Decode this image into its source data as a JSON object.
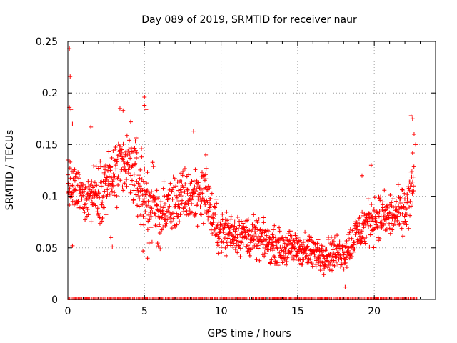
{
  "chart_data": {
    "type": "scatter",
    "title": "Day 089 of 2019, SRMTID for receiver naur",
    "xlabel": "GPS time / hours",
    "ylabel": "SRMTID / TECUs",
    "xlim": [
      0,
      24
    ],
    "ylim": [
      0,
      0.25
    ],
    "x_ticks": [
      0,
      5,
      10,
      15,
      20
    ],
    "x_tick_labels": [
      "0",
      "5",
      "10",
      "15",
      "20"
    ],
    "y_ticks": [
      0,
      0.05,
      0.1,
      0.15,
      0.2,
      0.25
    ],
    "y_tick_labels": [
      "0",
      "0.05",
      "0.1",
      "0.15",
      "0.2",
      "0.25"
    ],
    "grid": true,
    "marker": "+",
    "color": "#ff0000",
    "trend": [
      {
        "x": 0.0,
        "y": 0.11,
        "spread": 0.02
      },
      {
        "x": 1.0,
        "y": 0.1,
        "spread": 0.02
      },
      {
        "x": 2.0,
        "y": 0.105,
        "spread": 0.025
      },
      {
        "x": 3.0,
        "y": 0.12,
        "spread": 0.03
      },
      {
        "x": 4.0,
        "y": 0.13,
        "spread": 0.03
      },
      {
        "x": 5.0,
        "y": 0.1,
        "spread": 0.04
      },
      {
        "x": 6.0,
        "y": 0.08,
        "spread": 0.025
      },
      {
        "x": 7.0,
        "y": 0.095,
        "spread": 0.025
      },
      {
        "x": 8.0,
        "y": 0.1,
        "spread": 0.025
      },
      {
        "x": 9.0,
        "y": 0.105,
        "spread": 0.025
      },
      {
        "x": 9.5,
        "y": 0.075,
        "spread": 0.02
      },
      {
        "x": 10.0,
        "y": 0.065,
        "spread": 0.02
      },
      {
        "x": 11.0,
        "y": 0.065,
        "spread": 0.018
      },
      {
        "x": 12.0,
        "y": 0.06,
        "spread": 0.018
      },
      {
        "x": 13.0,
        "y": 0.055,
        "spread": 0.015
      },
      {
        "x": 14.0,
        "y": 0.05,
        "spread": 0.015
      },
      {
        "x": 15.0,
        "y": 0.05,
        "spread": 0.015
      },
      {
        "x": 16.0,
        "y": 0.045,
        "spread": 0.015
      },
      {
        "x": 17.0,
        "y": 0.045,
        "spread": 0.015
      },
      {
        "x": 18.0,
        "y": 0.045,
        "spread": 0.015
      },
      {
        "x": 19.0,
        "y": 0.065,
        "spread": 0.02
      },
      {
        "x": 20.0,
        "y": 0.08,
        "spread": 0.02
      },
      {
        "x": 21.0,
        "y": 0.08,
        "spread": 0.02
      },
      {
        "x": 22.0,
        "y": 0.085,
        "spread": 0.02
      },
      {
        "x": 22.6,
        "y": 0.11,
        "spread": 0.03
      }
    ],
    "outliers": [
      {
        "x": 0.1,
        "y": 0.243
      },
      {
        "x": 0.15,
        "y": 0.216
      },
      {
        "x": 0.1,
        "y": 0.186
      },
      {
        "x": 0.2,
        "y": 0.184
      },
      {
        "x": 0.3,
        "y": 0.17
      },
      {
        "x": 0.0,
        "y": 0.135
      },
      {
        "x": 1.5,
        "y": 0.167
      },
      {
        "x": 3.4,
        "y": 0.185
      },
      {
        "x": 3.6,
        "y": 0.183
      },
      {
        "x": 4.1,
        "y": 0.172
      },
      {
        "x": 5.0,
        "y": 0.196
      },
      {
        "x": 5.0,
        "y": 0.188
      },
      {
        "x": 5.1,
        "y": 0.184
      },
      {
        "x": 8.2,
        "y": 0.163
      },
      {
        "x": 2.8,
        "y": 0.06
      },
      {
        "x": 2.9,
        "y": 0.051
      },
      {
        "x": 5.2,
        "y": 0.04
      },
      {
        "x": 4.9,
        "y": 0.047
      },
      {
        "x": 18.1,
        "y": 0.012
      },
      {
        "x": 19.8,
        "y": 0.13
      },
      {
        "x": 22.4,
        "y": 0.178
      },
      {
        "x": 22.5,
        "y": 0.175
      },
      {
        "x": 22.6,
        "y": 0.16
      },
      {
        "x": 22.5,
        "y": 0.142
      },
      {
        "x": 22.7,
        "y": 0.15
      },
      {
        "x": 19.2,
        "y": 0.12
      },
      {
        "x": 0.3,
        "y": 0.052
      },
      {
        "x": 9.0,
        "y": 0.14
      }
    ],
    "zero_band": {
      "x_from": 0,
      "x_to": 22.8,
      "y": 0
    }
  }
}
